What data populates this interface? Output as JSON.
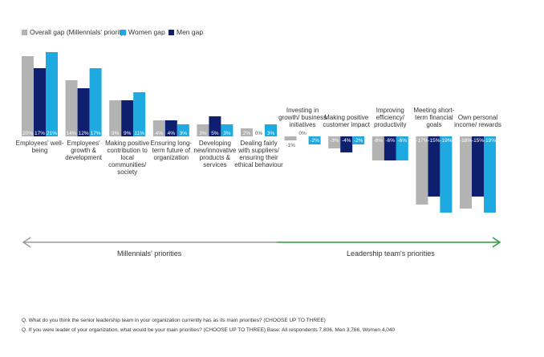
{
  "chart_data": {
    "type": "bar",
    "categories": [
      "Employees' well-being",
      "Employees' growth & development",
      "Making positive contribution to local communities/ society",
      "Ensuring long-term future of organization",
      "Developing new/innovative products & services",
      "Dealing fairly with suppliers/ ensuring their ethical behaviour",
      "Investing in growth/ business initiatives",
      "Making positive customer impact",
      "Improving efficiency/ productivity",
      "Meeting short-term financial goals",
      "Own personal income/ rewards"
    ],
    "series": [
      {
        "name": "Overall gap (Millennials' priority)",
        "color": "#b3b3b3",
        "values": [
          20,
          14,
          9,
          4,
          3,
          2,
          -1,
          -3,
          -6,
          -17,
          -18
        ],
        "value_labels": [
          "20%",
          "14%",
          "9%",
          "4%",
          "3%",
          "2%",
          "-1%",
          "-3%",
          "-6%",
          "-17%",
          "-18%"
        ]
      },
      {
        "name": "Men gap",
        "color": "#0f1f6f",
        "values": [
          17,
          12,
          9,
          4,
          5,
          0,
          0,
          -4,
          -6,
          -15,
          -15
        ],
        "value_labels": [
          "17%",
          "12%",
          "9%",
          "4%",
          "5%",
          "0%",
          "0%",
          "-4%",
          "-6%",
          "-15%",
          "-15%"
        ]
      },
      {
        "name": "Women gap",
        "color": "#1fa9e1",
        "values": [
          21,
          17,
          11,
          3,
          3,
          3,
          -2,
          -2,
          -6,
          -19,
          -19
        ],
        "value_labels": [
          "21%",
          "17%",
          "11%",
          "3%",
          "3%",
          "3%",
          "-2%",
          "-2%",
          "-6%",
          "-19%",
          "-19%"
        ]
      }
    ],
    "annotations": [
      "Millennials' priorities",
      "Leadership team's priorities"
    ]
  },
  "footnotes": [
    "Q. What do you think the senior leadership team in your organization currently has as its main priorities? (CHOOSE UP TO THREE)",
    "Q. If you were leader of your organization, what would be your main priorities? (CHOOSE UP TO THREE) Base: All respondents 7,806, Men 3,766, Women 4,040"
  ]
}
